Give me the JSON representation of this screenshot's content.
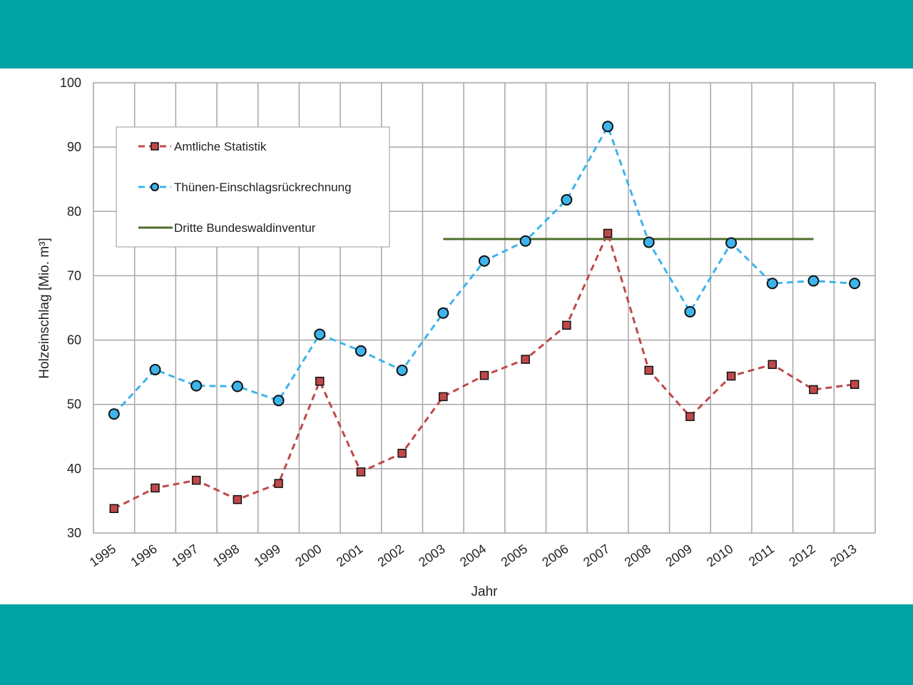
{
  "colors": {
    "band": "#00a3a3",
    "grid": "#a6a6a6",
    "amtlich": "#c0484a",
    "thuenen": "#3db4ec",
    "bwi": "#4e6e2a"
  },
  "chart_data": {
    "type": "line",
    "xlabel": "Jahr",
    "ylabel": "Holzeinschlag  [Mio. m³]",
    "ylim": [
      30,
      100
    ],
    "yticks": [
      "30",
      "40",
      "50",
      "60",
      "70",
      "80",
      "90",
      "100"
    ],
    "categories": [
      "1995",
      "1996",
      "1997",
      "1998",
      "1999",
      "2000",
      "2001",
      "2002",
      "2003",
      "2004",
      "2005",
      "2006",
      "2007",
      "2008",
      "2009",
      "2010",
      "2011",
      "2012",
      "2013"
    ],
    "grid": true,
    "legend_position": "top-left",
    "series": [
      {
        "name": "Amtliche Statistik",
        "style": "dashed",
        "marker": "square",
        "values": [
          33.8,
          37.0,
          38.2,
          35.2,
          37.7,
          53.6,
          39.5,
          42.4,
          51.2,
          54.5,
          57.0,
          62.3,
          76.6,
          55.3,
          48.1,
          54.4,
          56.2,
          52.3,
          53.1
        ]
      },
      {
        "name": "Thünen-Einschlagsrückrechnung",
        "style": "dashed",
        "marker": "circle",
        "values": [
          48.5,
          55.4,
          52.9,
          52.8,
          50.6,
          60.9,
          58.3,
          55.3,
          64.2,
          72.3,
          75.4,
          81.8,
          93.2,
          75.2,
          64.4,
          75.1,
          68.8,
          69.2,
          68.8
        ]
      },
      {
        "name": "Dritte Bundeswaldinventur",
        "style": "solid",
        "marker": "none",
        "x_start": "2003",
        "x_end": "2012",
        "value": 75.7
      }
    ]
  }
}
